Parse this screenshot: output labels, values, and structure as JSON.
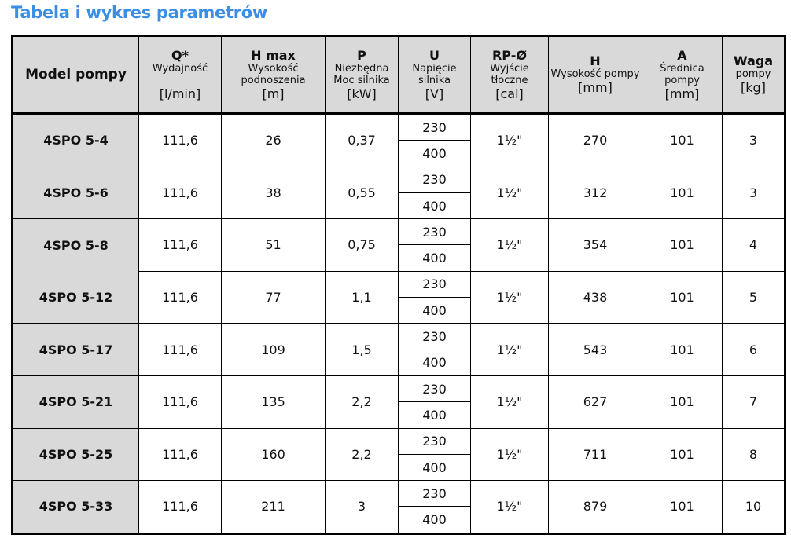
{
  "title": "Tabela i wykres parametrów",
  "headers": [
    {
      "sym": "",
      "desc": "Model pompy",
      "unit": ""
    },
    {
      "sym": "Q*",
      "desc": "Wydajność",
      "unit": "[l/min]"
    },
    {
      "sym": "H max",
      "desc": "Wysokość podnoszenia",
      "unit": "[m]"
    },
    {
      "sym": "P",
      "desc": "Niezbędna Moc silnika",
      "unit": "[kW]"
    },
    {
      "sym": "U",
      "desc": "Napięcie silnika",
      "unit": "[V]"
    },
    {
      "sym": "RP-Ø",
      "desc": "Wyjście tłoczne",
      "unit": "[cal]"
    },
    {
      "sym": "H",
      "desc": "Wysokość pompy",
      "unit": "[mm]"
    },
    {
      "sym": "A",
      "desc": "Średnica pompy",
      "unit": "[mm]"
    },
    {
      "sym": "Waga",
      "desc": "pompy",
      "unit": "[kg]"
    }
  ],
  "rows": [
    {
      "model": "4SPO 5-4",
      "q": "111,6",
      "hmax": "26",
      "p": "0,37",
      "u": [
        "230",
        "400"
      ],
      "rp": "1½\"",
      "h": "270",
      "a": "101",
      "waga": "3"
    },
    {
      "model": "4SPO 5-6",
      "q": "111,6",
      "hmax": "38",
      "p": "0,55",
      "u": [
        "230",
        "400"
      ],
      "rp": "1½\"",
      "h": "312",
      "a": "101",
      "waga": "3"
    },
    {
      "model": "4SPO 5-8",
      "q": "111,6",
      "hmax": "51",
      "p": "0,75",
      "u": [
        "230",
        "400"
      ],
      "rp": "1½\"",
      "h": "354",
      "a": "101",
      "waga": "4"
    },
    {
      "model": "4SPO 5-12",
      "q": "111,6",
      "hmax": "77",
      "p": "1,1",
      "u": [
        "230",
        "400"
      ],
      "rp": "1½\"",
      "h": "438",
      "a": "101",
      "waga": "5"
    },
    {
      "model": "4SPO 5-17",
      "q": "111,6",
      "hmax": "109",
      "p": "1,5",
      "u": [
        "230",
        "400"
      ],
      "rp": "1½\"",
      "h": "543",
      "a": "101",
      "waga": "6"
    },
    {
      "model": "4SPO 5-21",
      "q": "111,6",
      "hmax": "135",
      "p": "2,2",
      "u": [
        "230",
        "400"
      ],
      "rp": "1½\"",
      "h": "627",
      "a": "101",
      "waga": "7"
    },
    {
      "model": "4SPO 5-25",
      "q": "111,6",
      "hmax": "160",
      "p": "2,2",
      "u": [
        "230",
        "400"
      ],
      "rp": "1½\"",
      "h": "711",
      "a": "101",
      "waga": "8"
    },
    {
      "model": "4SPO 5-33",
      "q": "111,6",
      "hmax": "211",
      "p": "3",
      "u": [
        "230",
        "400"
      ],
      "rp": "1½\"",
      "h": "879",
      "a": "101",
      "waga": "10"
    }
  ]
}
